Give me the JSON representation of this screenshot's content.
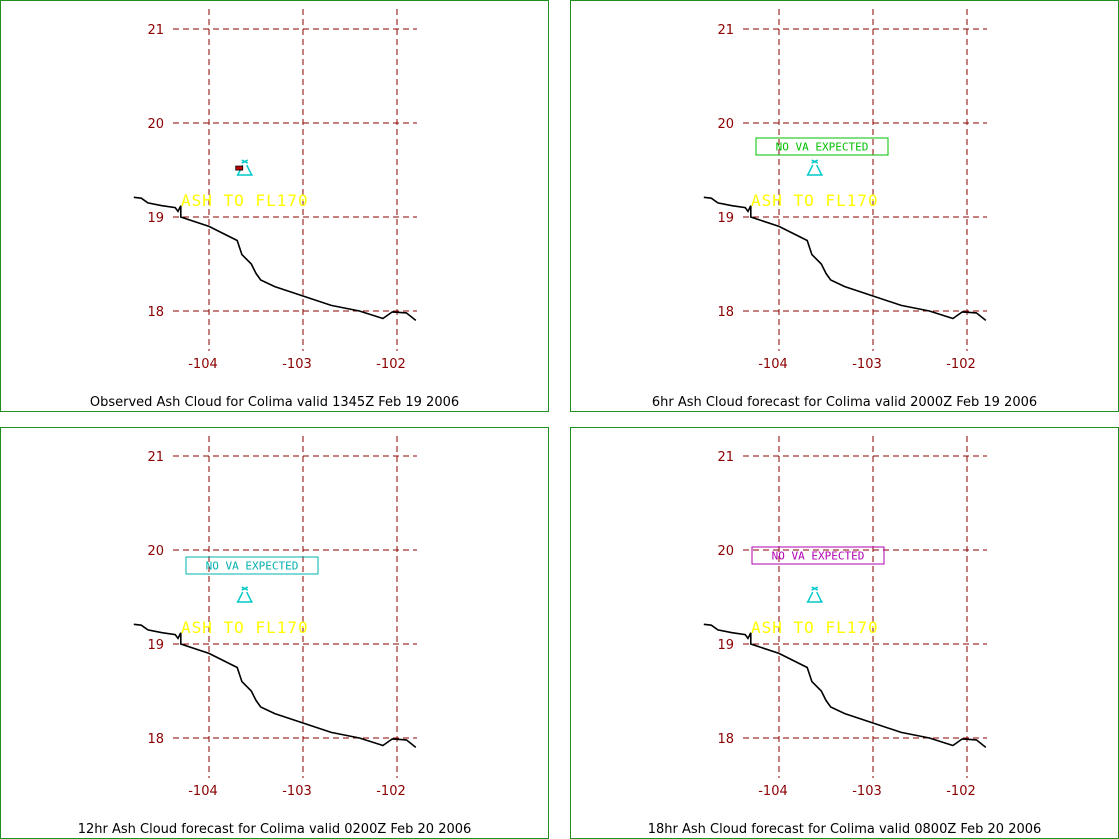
{
  "colors": {
    "grid": "#8b0000",
    "border": "#1f8f1f",
    "coast": "#000000",
    "ash_text": "#ffff00",
    "volcano": "#00c8c8"
  },
  "axes": {
    "lat_labels": [
      "21",
      "20",
      "19",
      "18"
    ],
    "lon_labels": [
      "-104",
      "-103",
      "-102"
    ],
    "lat_values": [
      21,
      20,
      19,
      18
    ],
    "lon_values": [
      -104,
      -103,
      -102
    ]
  },
  "coastline": [
    [
      -104.8,
      19.21
    ],
    [
      -104.72,
      19.2
    ],
    [
      -104.65,
      19.15
    ],
    [
      -104.5,
      19.12
    ],
    [
      -104.36,
      19.1
    ],
    [
      -104.33,
      19.06
    ],
    [
      -104.3,
      19.12
    ],
    [
      -104.3,
      19.0
    ],
    [
      -104.0,
      18.9
    ],
    [
      -103.7,
      18.75
    ],
    [
      -103.65,
      18.6
    ],
    [
      -103.55,
      18.5
    ],
    [
      -103.5,
      18.4
    ],
    [
      -103.45,
      18.33
    ],
    [
      -103.3,
      18.26
    ],
    [
      -103.0,
      18.16
    ],
    [
      -102.7,
      18.06
    ],
    [
      -102.4,
      18.0
    ],
    [
      -102.15,
      17.92
    ],
    [
      -102.05,
      17.99
    ],
    [
      -101.9,
      17.98
    ],
    [
      -101.8,
      17.9
    ]
  ],
  "volcano": {
    "name": "Colima",
    "lon": -103.62,
    "lat": 19.51
  },
  "panels": [
    {
      "caption": "Observed Ash Cloud for Colima valid 1345Z Feb 19 2006",
      "ash_label": "ASH TO FL170",
      "notice": null,
      "notice_color": null,
      "observed_marker": true
    },
    {
      "caption": "6hr Ash Cloud forecast for Colima valid 2000Z Feb 19 2006",
      "ash_label": "ASH TO FL170",
      "notice": "NO VA EXPECTED",
      "notice_color": "#00c000",
      "observed_marker": false
    },
    {
      "caption": "12hr Ash Cloud forecast for Colima valid 0200Z Feb 20 2006",
      "ash_label": "ASH TO FL170",
      "notice": "NO VA EXPECTED",
      "notice_color": "#00b0b0",
      "observed_marker": false
    },
    {
      "caption": "18hr Ash Cloud forecast for Colima valid 0800Z Feb 20 2006",
      "ash_label": "ASH TO FL170",
      "notice": "NO VA EXPECTED",
      "notice_color": "#b000b0",
      "observed_marker": false
    }
  ]
}
